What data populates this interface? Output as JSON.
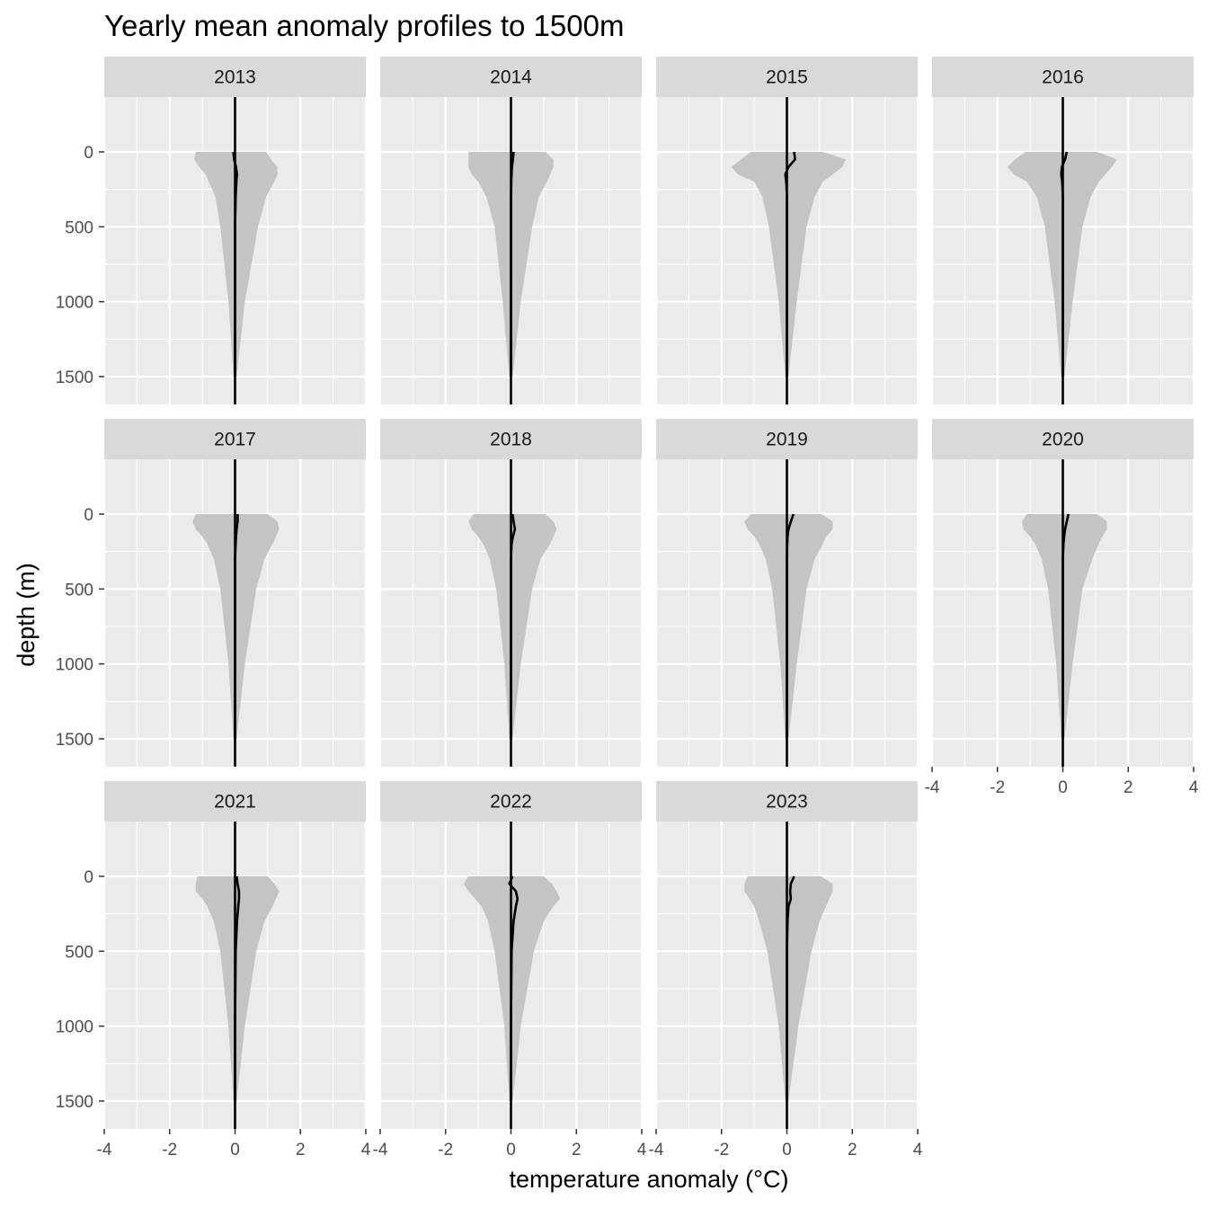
{
  "chart_data": {
    "type": "area",
    "title": "Yearly mean anomaly profiles to 1500m",
    "xlabel": "temperature anomaly (°C)",
    "ylabel": "depth (m)",
    "xlim": [
      -4.0,
      4.0
    ],
    "ylim": [
      0,
      1500
    ],
    "y_reversed": true,
    "x_ticks": [
      -4,
      -2,
      0,
      2,
      4
    ],
    "y_ticks": [
      0,
      500,
      1000,
      1500
    ],
    "x_tick_labels": [
      "-4",
      "-2",
      "0",
      "2",
      "4"
    ],
    "y_tick_labels": [
      "0",
      "500",
      "1000",
      "1500"
    ],
    "grid": true,
    "legend": "none",
    "colors": {
      "panel_background": "#ebebeb",
      "strip_background": "#d9d9d9",
      "gridline": "#ffffff",
      "envelope": "#c4c4c4",
      "mean_line": "#000000"
    },
    "panels": [
      {
        "year": "2013",
        "envelope_depths": [
          0,
          50,
          100,
          150,
          200,
          300,
          500,
          1000,
          1500
        ],
        "envelope_min": [
          -1.2,
          -1.25,
          -1.1,
          -0.9,
          -0.8,
          -0.6,
          -0.45,
          -0.2,
          -0.05
        ],
        "envelope_max": [
          0.95,
          1.1,
          1.3,
          1.3,
          1.2,
          0.95,
          0.7,
          0.3,
          0.05
        ],
        "mean_depths": [
          0,
          50,
          100,
          150,
          200,
          300,
          500,
          1000,
          1500
        ],
        "mean_values": [
          -0.05,
          -0.03,
          0.03,
          0.06,
          0.04,
          0.02,
          0.0,
          0.0,
          0.0
        ]
      },
      {
        "year": "2014",
        "envelope_depths": [
          0,
          50,
          100,
          150,
          200,
          300,
          500,
          1000,
          1500
        ],
        "envelope_min": [
          -1.3,
          -1.3,
          -1.3,
          -1.2,
          -1.0,
          -0.75,
          -0.5,
          -0.25,
          -0.05
        ],
        "envelope_max": [
          1.05,
          1.3,
          1.3,
          1.2,
          1.1,
          0.85,
          0.65,
          0.3,
          0.05
        ],
        "mean_depths": [
          0,
          50,
          100,
          150,
          200,
          300,
          500,
          1000,
          1500
        ],
        "mean_values": [
          0.08,
          0.06,
          0.03,
          0.02,
          0.01,
          0.0,
          0.0,
          0.0,
          0.0
        ]
      },
      {
        "year": "2015",
        "envelope_depths": [
          0,
          50,
          100,
          150,
          200,
          300,
          500,
          1000,
          1500
        ],
        "envelope_min": [
          -1.1,
          -1.4,
          -1.7,
          -1.5,
          -1.0,
          -0.75,
          -0.55,
          -0.25,
          -0.05
        ],
        "envelope_max": [
          1.1,
          1.8,
          1.7,
          1.4,
          1.1,
          0.85,
          0.6,
          0.3,
          0.05
        ],
        "mean_depths": [
          0,
          50,
          100,
          150,
          200,
          300,
          500,
          1000,
          1500
        ],
        "mean_values": [
          0.22,
          0.25,
          0.05,
          -0.05,
          -0.02,
          0.0,
          0.0,
          0.0,
          0.0
        ]
      },
      {
        "year": "2016",
        "envelope_depths": [
          0,
          50,
          100,
          150,
          200,
          300,
          500,
          1000,
          1500
        ],
        "envelope_min": [
          -1.15,
          -1.45,
          -1.7,
          -1.5,
          -1.1,
          -0.8,
          -0.55,
          -0.25,
          -0.05
        ],
        "envelope_max": [
          1.05,
          1.65,
          1.5,
          1.3,
          1.1,
          0.85,
          0.6,
          0.3,
          0.05
        ],
        "mean_depths": [
          0,
          50,
          100,
          150,
          200,
          300,
          500,
          1000,
          1500
        ],
        "mean_values": [
          0.12,
          0.07,
          -0.03,
          -0.05,
          -0.02,
          0.0,
          0.0,
          0.0,
          0.0
        ]
      },
      {
        "year": "2017",
        "envelope_depths": [
          0,
          50,
          100,
          150,
          200,
          300,
          500,
          1000,
          1500
        ],
        "envelope_min": [
          -1.2,
          -1.3,
          -1.2,
          -1.0,
          -0.85,
          -0.65,
          -0.45,
          -0.2,
          -0.05
        ],
        "envelope_max": [
          1.0,
          1.3,
          1.35,
          1.25,
          1.15,
          0.9,
          0.65,
          0.3,
          0.05
        ],
        "mean_depths": [
          0,
          50,
          100,
          150,
          200,
          300,
          500,
          1000,
          1500
        ],
        "mean_values": [
          0.08,
          0.08,
          0.05,
          0.03,
          0.02,
          0.0,
          0.0,
          0.0,
          0.0
        ]
      },
      {
        "year": "2018",
        "envelope_depths": [
          0,
          50,
          100,
          150,
          200,
          300,
          500,
          1000,
          1500
        ],
        "envelope_min": [
          -1.15,
          -1.3,
          -1.2,
          -1.0,
          -0.85,
          -0.65,
          -0.45,
          -0.2,
          -0.05
        ],
        "envelope_max": [
          1.05,
          1.3,
          1.4,
          1.3,
          1.2,
          0.9,
          0.65,
          0.3,
          0.05
        ],
        "mean_depths": [
          0,
          50,
          100,
          150,
          200,
          300,
          500,
          1000,
          1500
        ],
        "mean_values": [
          0.05,
          0.08,
          0.12,
          0.06,
          0.02,
          0.0,
          0.0,
          0.0,
          0.0
        ]
      },
      {
        "year": "2019",
        "envelope_depths": [
          0,
          50,
          100,
          150,
          200,
          300,
          500,
          1000,
          1500
        ],
        "envelope_min": [
          -1.1,
          -1.3,
          -1.2,
          -1.0,
          -0.85,
          -0.65,
          -0.45,
          -0.2,
          -0.05
        ],
        "envelope_max": [
          1.05,
          1.4,
          1.4,
          1.2,
          1.1,
          0.85,
          0.6,
          0.3,
          0.05
        ],
        "mean_depths": [
          0,
          50,
          100,
          150,
          200,
          300,
          500,
          1000,
          1500
        ],
        "mean_values": [
          0.2,
          0.12,
          0.05,
          0.02,
          0.01,
          0.0,
          0.0,
          0.0,
          0.0
        ]
      },
      {
        "year": "2020",
        "envelope_depths": [
          0,
          50,
          100,
          150,
          200,
          300,
          500,
          1000,
          1500
        ],
        "envelope_min": [
          -1.1,
          -1.25,
          -1.2,
          -1.0,
          -0.85,
          -0.65,
          -0.45,
          -0.2,
          -0.05
        ],
        "envelope_max": [
          1.05,
          1.35,
          1.35,
          1.2,
          1.1,
          0.9,
          0.6,
          0.3,
          0.05
        ],
        "mean_depths": [
          0,
          50,
          100,
          150,
          200,
          300,
          500,
          1000,
          1500
        ],
        "mean_values": [
          0.17,
          0.12,
          0.07,
          0.04,
          0.02,
          0.0,
          0.0,
          0.0,
          0.0
        ]
      },
      {
        "year": "2021",
        "envelope_depths": [
          0,
          50,
          100,
          150,
          200,
          300,
          500,
          1000,
          1500
        ],
        "envelope_min": [
          -1.15,
          -1.2,
          -1.2,
          -1.0,
          -0.85,
          -0.65,
          -0.45,
          -0.2,
          -0.05
        ],
        "envelope_max": [
          1.0,
          1.2,
          1.35,
          1.25,
          1.15,
          0.9,
          0.65,
          0.3,
          0.05
        ],
        "mean_depths": [
          0,
          50,
          100,
          150,
          200,
          300,
          500,
          1000,
          1500
        ],
        "mean_values": [
          0.05,
          0.08,
          0.12,
          0.12,
          0.1,
          0.06,
          0.02,
          0.0,
          0.0
        ]
      },
      {
        "year": "2022",
        "envelope_depths": [
          0,
          50,
          100,
          150,
          200,
          300,
          500,
          1000,
          1500
        ],
        "envelope_min": [
          -1.3,
          -1.45,
          -1.3,
          -1.1,
          -0.9,
          -0.7,
          -0.5,
          -0.2,
          -0.05
        ],
        "envelope_max": [
          1.0,
          1.25,
          1.4,
          1.5,
          1.3,
          1.0,
          0.7,
          0.3,
          0.05
        ],
        "mean_depths": [
          0,
          50,
          100,
          150,
          200,
          300,
          500,
          1000,
          1500
        ],
        "mean_values": [
          0.05,
          -0.05,
          0.15,
          0.2,
          0.15,
          0.08,
          0.02,
          0.0,
          0.0
        ]
      },
      {
        "year": "2023",
        "envelope_depths": [
          0,
          50,
          100,
          150,
          200,
          300,
          500,
          1000,
          1500
        ],
        "envelope_min": [
          -1.2,
          -1.3,
          -1.3,
          -1.15,
          -1.0,
          -0.85,
          -0.6,
          -0.25,
          -0.05
        ],
        "envelope_max": [
          1.05,
          1.4,
          1.4,
          1.3,
          1.2,
          1.0,
          0.75,
          0.35,
          0.05
        ],
        "mean_depths": [
          0,
          50,
          100,
          150,
          200,
          300,
          500,
          1000,
          1500
        ],
        "mean_values": [
          0.22,
          0.12,
          0.1,
          0.12,
          0.05,
          0.02,
          0.0,
          0.0,
          0.0
        ]
      }
    ]
  }
}
